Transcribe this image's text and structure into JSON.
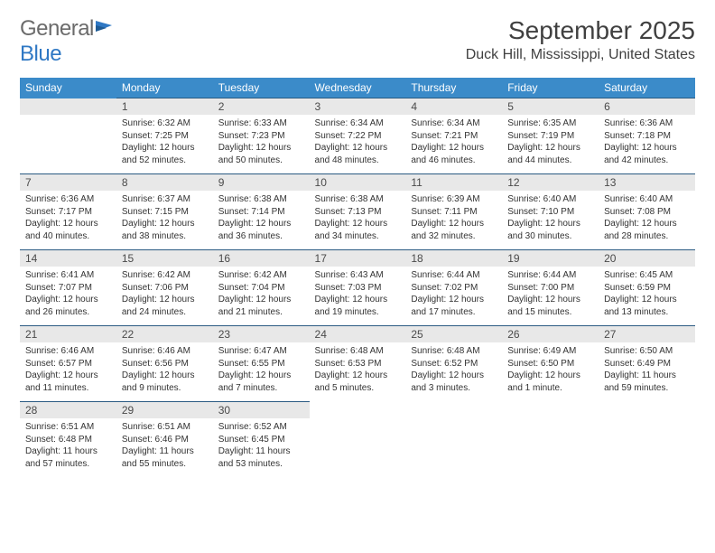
{
  "logo": {
    "word1": "General",
    "word2": "Blue"
  },
  "title": "September 2025",
  "location": "Duck Hill, Mississippi, United States",
  "colors": {
    "header_bg": "#3b8bc9",
    "header_text": "#ffffff",
    "daynum_bg": "#e8e8e8",
    "row_border": "#2a5a82",
    "logo_gray": "#6b6b6b",
    "logo_blue": "#2f78c4"
  },
  "weekdays": [
    "Sunday",
    "Monday",
    "Tuesday",
    "Wednesday",
    "Thursday",
    "Friday",
    "Saturday"
  ],
  "grid": [
    [
      null,
      {
        "n": "1",
        "sr": "6:32 AM",
        "ss": "7:25 PM",
        "dl": "12 hours and 52 minutes."
      },
      {
        "n": "2",
        "sr": "6:33 AM",
        "ss": "7:23 PM",
        "dl": "12 hours and 50 minutes."
      },
      {
        "n": "3",
        "sr": "6:34 AM",
        "ss": "7:22 PM",
        "dl": "12 hours and 48 minutes."
      },
      {
        "n": "4",
        "sr": "6:34 AM",
        "ss": "7:21 PM",
        "dl": "12 hours and 46 minutes."
      },
      {
        "n": "5",
        "sr": "6:35 AM",
        "ss": "7:19 PM",
        "dl": "12 hours and 44 minutes."
      },
      {
        "n": "6",
        "sr": "6:36 AM",
        "ss": "7:18 PM",
        "dl": "12 hours and 42 minutes."
      }
    ],
    [
      {
        "n": "7",
        "sr": "6:36 AM",
        "ss": "7:17 PM",
        "dl": "12 hours and 40 minutes."
      },
      {
        "n": "8",
        "sr": "6:37 AM",
        "ss": "7:15 PM",
        "dl": "12 hours and 38 minutes."
      },
      {
        "n": "9",
        "sr": "6:38 AM",
        "ss": "7:14 PM",
        "dl": "12 hours and 36 minutes."
      },
      {
        "n": "10",
        "sr": "6:38 AM",
        "ss": "7:13 PM",
        "dl": "12 hours and 34 minutes."
      },
      {
        "n": "11",
        "sr": "6:39 AM",
        "ss": "7:11 PM",
        "dl": "12 hours and 32 minutes."
      },
      {
        "n": "12",
        "sr": "6:40 AM",
        "ss": "7:10 PM",
        "dl": "12 hours and 30 minutes."
      },
      {
        "n": "13",
        "sr": "6:40 AM",
        "ss": "7:08 PM",
        "dl": "12 hours and 28 minutes."
      }
    ],
    [
      {
        "n": "14",
        "sr": "6:41 AM",
        "ss": "7:07 PM",
        "dl": "12 hours and 26 minutes."
      },
      {
        "n": "15",
        "sr": "6:42 AM",
        "ss": "7:06 PM",
        "dl": "12 hours and 24 minutes."
      },
      {
        "n": "16",
        "sr": "6:42 AM",
        "ss": "7:04 PM",
        "dl": "12 hours and 21 minutes."
      },
      {
        "n": "17",
        "sr": "6:43 AM",
        "ss": "7:03 PM",
        "dl": "12 hours and 19 minutes."
      },
      {
        "n": "18",
        "sr": "6:44 AM",
        "ss": "7:02 PM",
        "dl": "12 hours and 17 minutes."
      },
      {
        "n": "19",
        "sr": "6:44 AM",
        "ss": "7:00 PM",
        "dl": "12 hours and 15 minutes."
      },
      {
        "n": "20",
        "sr": "6:45 AM",
        "ss": "6:59 PM",
        "dl": "12 hours and 13 minutes."
      }
    ],
    [
      {
        "n": "21",
        "sr": "6:46 AM",
        "ss": "6:57 PM",
        "dl": "12 hours and 11 minutes."
      },
      {
        "n": "22",
        "sr": "6:46 AM",
        "ss": "6:56 PM",
        "dl": "12 hours and 9 minutes."
      },
      {
        "n": "23",
        "sr": "6:47 AM",
        "ss": "6:55 PM",
        "dl": "12 hours and 7 minutes."
      },
      {
        "n": "24",
        "sr": "6:48 AM",
        "ss": "6:53 PM",
        "dl": "12 hours and 5 minutes."
      },
      {
        "n": "25",
        "sr": "6:48 AM",
        "ss": "6:52 PM",
        "dl": "12 hours and 3 minutes."
      },
      {
        "n": "26",
        "sr": "6:49 AM",
        "ss": "6:50 PM",
        "dl": "12 hours and 1 minute."
      },
      {
        "n": "27",
        "sr": "6:50 AM",
        "ss": "6:49 PM",
        "dl": "11 hours and 59 minutes."
      }
    ],
    [
      {
        "n": "28",
        "sr": "6:51 AM",
        "ss": "6:48 PM",
        "dl": "11 hours and 57 minutes."
      },
      {
        "n": "29",
        "sr": "6:51 AM",
        "ss": "6:46 PM",
        "dl": "11 hours and 55 minutes."
      },
      {
        "n": "30",
        "sr": "6:52 AM",
        "ss": "6:45 PM",
        "dl": "11 hours and 53 minutes."
      },
      null,
      null,
      null,
      null
    ]
  ],
  "labels": {
    "sunrise": "Sunrise:",
    "sunset": "Sunset:",
    "daylight": "Daylight:"
  }
}
